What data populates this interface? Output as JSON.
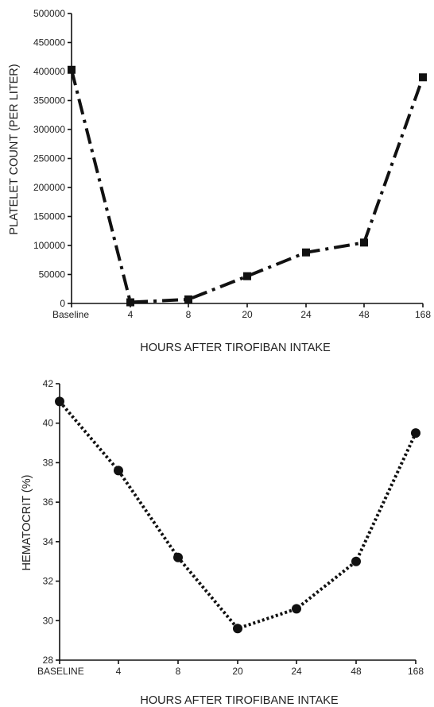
{
  "chart_data": [
    {
      "type": "line",
      "categories": [
        "Baseline",
        "4",
        "8",
        "20",
        "24",
        "48",
        "168"
      ],
      "series": [
        {
          "values": [
            403000,
            2000,
            7000,
            47000,
            88000,
            105000,
            390000
          ],
          "marker": "square",
          "line_style": "dash-dot",
          "color": "#111111"
        }
      ],
      "xlabel": "HOURS AFTER TIROFIBAN INTAKE",
      "ylabel": "PLATELET COUNT (PER LITER)",
      "ylim": [
        0,
        500000
      ],
      "yticks": [
        0,
        50000,
        100000,
        150000,
        200000,
        250000,
        300000,
        350000,
        400000,
        450000,
        500000
      ],
      "grid": false,
      "legend": "none"
    },
    {
      "type": "line",
      "categories": [
        "BASELINE",
        "4",
        "8",
        "20",
        "24",
        "48",
        "168"
      ],
      "series": [
        {
          "values": [
            41.1,
            37.6,
            33.2,
            29.6,
            30.6,
            33.0,
            39.5
          ],
          "marker": "circle",
          "line_style": "dotted",
          "color": "#111111"
        }
      ],
      "xlabel": "HOURS AFTER TIROFIBANE INTAKE",
      "ylabel": "HEMATOCRIT   (%)",
      "ylim": [
        28,
        42
      ],
      "yticks": [
        28,
        30,
        32,
        34,
        36,
        38,
        40,
        42
      ],
      "grid": false,
      "legend": "none"
    }
  ]
}
